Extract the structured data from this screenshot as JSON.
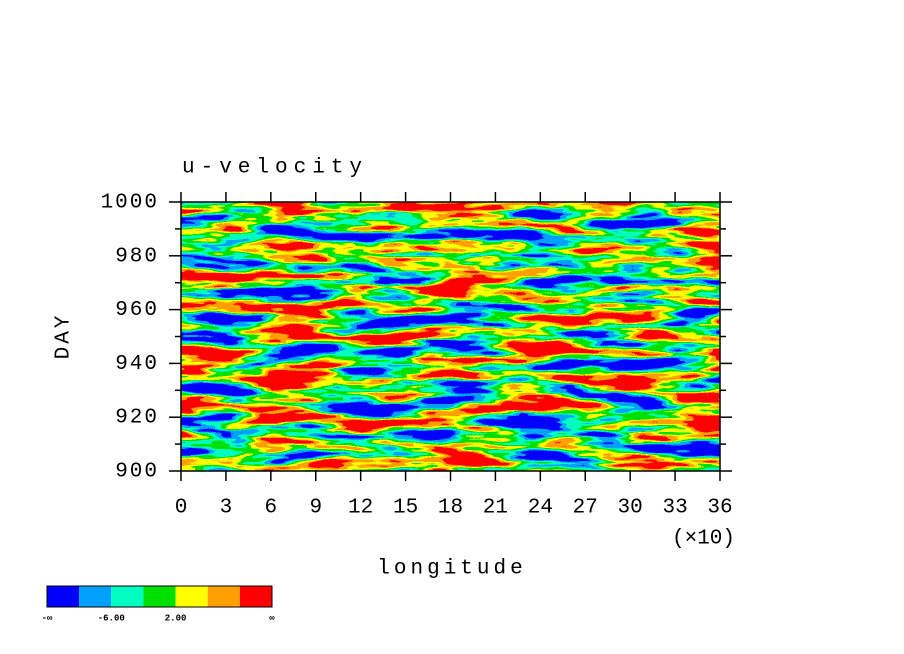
{
  "chart_data": {
    "type": "contour",
    "title": "u-velocity",
    "x_label": "longitude",
    "x_scale_label": "(×10)",
    "y_label": "DAY",
    "xlim": [
      0,
      36
    ],
    "xticks": [
      0,
      3,
      6,
      9,
      12,
      15,
      18,
      21,
      24,
      27,
      30,
      33,
      36
    ],
    "ylim": [
      900,
      1000
    ],
    "yticks": [
      900,
      920,
      940,
      960,
      980,
      1000
    ],
    "yminorticks": [
      910,
      930,
      950,
      970,
      990
    ],
    "colorbar": {
      "colors": [
        "#0000ff",
        "#00a0ff",
        "#00ffc0",
        "#00e000",
        "#ffff00",
        "#ffa000",
        "#ff0000"
      ],
      "boundary_labels": [
        "-∞",
        null,
        "-6.00",
        null,
        "2.00",
        null,
        null,
        "∞"
      ]
    }
  }
}
